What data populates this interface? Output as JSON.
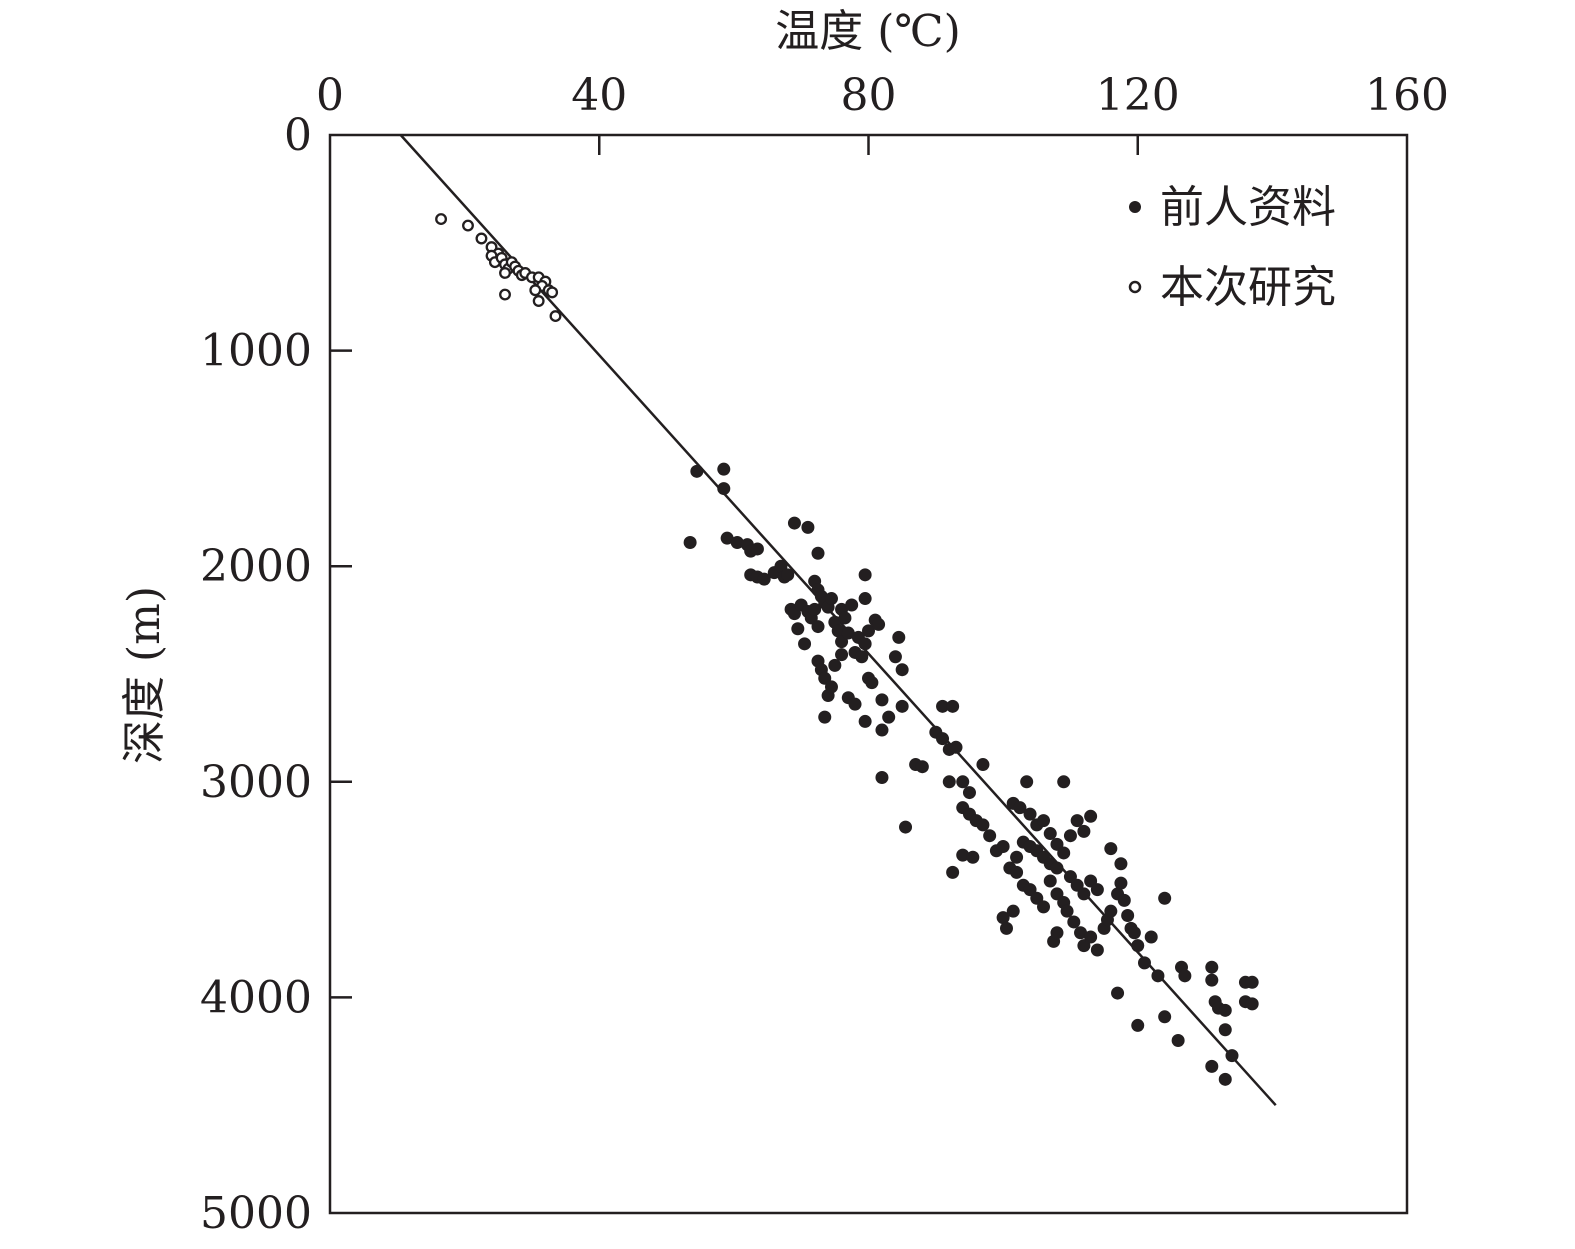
{
  "chart_data": {
    "type": "scatter",
    "xlabel": "温度 (℃)",
    "ylabel": "深度 (m)",
    "xlim": [
      0,
      160
    ],
    "ylim": [
      0,
      5000
    ],
    "x_axis_position": "top",
    "y_axis_inverted": true,
    "grid": false,
    "legend_position": "top-right",
    "x_ticks": [
      "0",
      "40",
      "80",
      "120",
      "160"
    ],
    "y_ticks": [
      "0",
      "1000",
      "2000",
      "3000",
      "4000",
      "5000"
    ],
    "colors": {
      "ink": "#231f20",
      "background": "#ffffff"
    },
    "series": [
      {
        "name": "前人资料",
        "marker": "filled-circle",
        "points": [
          [
            54.5,
            1560
          ],
          [
            58.5,
            1550
          ],
          [
            58.5,
            1640
          ],
          [
            53.5,
            1890
          ],
          [
            59,
            1870
          ],
          [
            60.5,
            1890
          ],
          [
            62,
            1900
          ],
          [
            62.5,
            1930
          ],
          [
            63.5,
            1920
          ],
          [
            62.5,
            2040
          ],
          [
            63.5,
            2050
          ],
          [
            64.5,
            2060
          ],
          [
            66,
            2030
          ],
          [
            67,
            2000
          ],
          [
            67.5,
            2050
          ],
          [
            68,
            2040
          ],
          [
            69,
            1800
          ],
          [
            71,
            1820
          ],
          [
            72.5,
            1940
          ],
          [
            79.5,
            2040
          ],
          [
            68.5,
            2200
          ],
          [
            69,
            2220
          ],
          [
            69.5,
            2290
          ],
          [
            70,
            2180
          ],
          [
            70.5,
            2360
          ],
          [
            71,
            2210
          ],
          [
            71.5,
            2240
          ],
          [
            72,
            2200
          ],
          [
            72.5,
            2280
          ],
          [
            72,
            2070
          ],
          [
            72.5,
            2110
          ],
          [
            73,
            2140
          ],
          [
            73.5,
            2170
          ],
          [
            74,
            2190
          ],
          [
            74.5,
            2150
          ],
          [
            75,
            2260
          ],
          [
            75.5,
            2300
          ],
          [
            76,
            2350
          ],
          [
            76,
            2200
          ],
          [
            76.5,
            2240
          ],
          [
            77,
            2310
          ],
          [
            77.5,
            2180
          ],
          [
            78,
            2400
          ],
          [
            78.5,
            2330
          ],
          [
            79,
            2420
          ],
          [
            79.5,
            2360
          ],
          [
            80,
            2300
          ],
          [
            72.5,
            2440
          ],
          [
            73,
            2480
          ],
          [
            73.5,
            2520
          ],
          [
            74,
            2600
          ],
          [
            74.5,
            2560
          ],
          [
            75,
            2460
          ],
          [
            76,
            2410
          ],
          [
            77,
            2610
          ],
          [
            78,
            2640
          ],
          [
            80,
            2520
          ],
          [
            80.5,
            2540
          ],
          [
            81,
            2250
          ],
          [
            81.5,
            2270
          ],
          [
            82,
            2620
          ],
          [
            82,
            2760
          ],
          [
            83,
            2700
          ],
          [
            84,
            2420
          ],
          [
            84.5,
            2330
          ],
          [
            85,
            2480
          ],
          [
            85,
            2650
          ],
          [
            79.5,
            2150
          ],
          [
            73.5,
            2700
          ],
          [
            79.5,
            2720
          ],
          [
            91,
            2650
          ],
          [
            92.5,
            2650
          ],
          [
            90,
            2770
          ],
          [
            91,
            2800
          ],
          [
            92,
            2850
          ],
          [
            93,
            2840
          ],
          [
            92,
            3000
          ],
          [
            94,
            3000
          ],
          [
            95,
            3050
          ],
          [
            87,
            2920
          ],
          [
            88,
            2930
          ],
          [
            82,
            2980
          ],
          [
            85.5,
            3210
          ],
          [
            92.5,
            3420
          ],
          [
            97,
            2920
          ],
          [
            94,
            3120
          ],
          [
            95,
            3150
          ],
          [
            96,
            3180
          ],
          [
            97,
            3200
          ],
          [
            98,
            3250
          ],
          [
            94,
            3340
          ],
          [
            95.5,
            3350
          ],
          [
            99,
            3320
          ],
          [
            100,
            3300
          ],
          [
            101,
            3400
          ],
          [
            102,
            3350
          ],
          [
            103,
            3280
          ],
          [
            104,
            3300
          ],
          [
            105,
            3320
          ],
          [
            106,
            3350
          ],
          [
            107,
            3380
          ],
          [
            108,
            3400
          ],
          [
            101.5,
            3100
          ],
          [
            102.5,
            3120
          ],
          [
            103.5,
            3000
          ],
          [
            104,
            3150
          ],
          [
            105,
            3200
          ],
          [
            106,
            3180
          ],
          [
            107,
            3240
          ],
          [
            108,
            3290
          ],
          [
            109,
            3000
          ],
          [
            109,
            3330
          ],
          [
            110,
            3250
          ],
          [
            111,
            3180
          ],
          [
            112,
            3230
          ],
          [
            113,
            3160
          ],
          [
            100,
            3630
          ],
          [
            100.5,
            3680
          ],
          [
            101.5,
            3600
          ],
          [
            102,
            3420
          ],
          [
            103,
            3480
          ],
          [
            104,
            3500
          ],
          [
            105,
            3540
          ],
          [
            106,
            3580
          ],
          [
            107,
            3460
          ],
          [
            108,
            3520
          ],
          [
            109,
            3560
          ],
          [
            110,
            3440
          ],
          [
            111,
            3480
          ],
          [
            112,
            3520
          ],
          [
            113,
            3460
          ],
          [
            114,
            3500
          ],
          [
            107.5,
            3740
          ],
          [
            108,
            3700
          ],
          [
            109.5,
            3600
          ],
          [
            110.5,
            3650
          ],
          [
            111.5,
            3700
          ],
          [
            112,
            3760
          ],
          [
            113,
            3720
          ],
          [
            114,
            3780
          ],
          [
            115,
            3680
          ],
          [
            115.5,
            3640
          ],
          [
            116,
            3600
          ],
          [
            117,
            3520
          ],
          [
            117.5,
            3470
          ],
          [
            118,
            3550
          ],
          [
            118.5,
            3620
          ],
          [
            119,
            3680
          ],
          [
            116,
            3310
          ],
          [
            117.5,
            3380
          ],
          [
            119.5,
            3700
          ],
          [
            120,
            3760
          ],
          [
            121,
            3840
          ],
          [
            122,
            3720
          ],
          [
            123,
            3900
          ],
          [
            124,
            3540
          ],
          [
            120,
            4130
          ],
          [
            124,
            4090
          ],
          [
            117,
            3980
          ],
          [
            126,
            4200
          ],
          [
            126.5,
            3860
          ],
          [
            127,
            3900
          ],
          [
            131,
            3920
          ],
          [
            131,
            3860
          ],
          [
            131.5,
            4020
          ],
          [
            132,
            4050
          ],
          [
            133,
            4060
          ],
          [
            133,
            4150
          ],
          [
            134,
            4270
          ],
          [
            131,
            4320
          ],
          [
            133,
            4380
          ],
          [
            136,
            3930
          ],
          [
            137,
            3930
          ],
          [
            136,
            4020
          ],
          [
            137,
            4030
          ]
        ]
      },
      {
        "name": "本次研究",
        "marker": "open-circle",
        "points": [
          [
            16.5,
            390
          ],
          [
            20.5,
            420
          ],
          [
            22.5,
            480
          ],
          [
            24,
            520
          ],
          [
            25,
            550
          ],
          [
            24,
            560
          ],
          [
            24.5,
            590
          ],
          [
            25.5,
            570
          ],
          [
            26,
            600
          ],
          [
            26.5,
            620
          ],
          [
            27,
            590
          ],
          [
            27.5,
            610
          ],
          [
            28,
            630
          ],
          [
            28.5,
            650
          ],
          [
            29,
            640
          ],
          [
            30,
            660
          ],
          [
            31,
            660
          ],
          [
            32,
            680
          ],
          [
            31.5,
            700
          ],
          [
            32.5,
            720
          ],
          [
            33,
            730
          ],
          [
            30.5,
            720
          ],
          [
            31,
            770
          ],
          [
            33.5,
            840
          ],
          [
            26,
            740
          ],
          [
            26,
            640
          ]
        ]
      }
    ],
    "trendline": {
      "x": [
        10.5,
        140.5
      ],
      "y": [
        0,
        4500
      ]
    }
  }
}
